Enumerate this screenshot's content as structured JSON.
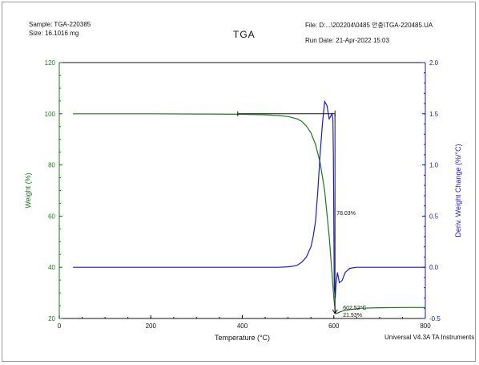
{
  "header": {
    "sample": "Sample: TGA-220385",
    "size": "Size:  16.1016 mg",
    "title": "TGA",
    "file": "File: D:...\\202204\\0485 안충\\TGA-220485.UA",
    "run_date": "Run Date: 21-Apr-2022 15:03",
    "footer": "Universal V4.3A TA Instruments"
  },
  "colors": {
    "weight": "#1a7a1a",
    "deriv": "#1a1acc",
    "annotation": "#111111"
  },
  "chart_data": {
    "type": "line",
    "xlabel": "Temperature (°C)",
    "ylabel": "Weight (%)",
    "y2label": "Deriv. Weight Change (%/°C)",
    "xlim": [
      0,
      800
    ],
    "ylim": [
      20,
      120
    ],
    "y2lim": [
      -0.5,
      2.0
    ],
    "xticks": [
      0,
      200,
      400,
      600,
      800
    ],
    "yticks": [
      20,
      40,
      60,
      80,
      100,
      120
    ],
    "y2ticks": [
      -0.5,
      0.0,
      0.5,
      1.0,
      1.5,
      2.0
    ],
    "grid": false,
    "series": [
      {
        "name": "",
        "axis": "left",
        "x": [
          30,
          100,
          200,
          300,
          400,
          450,
          480,
          500,
          520,
          530,
          540,
          550,
          560,
          570,
          580,
          590,
          595,
          600,
          603,
          606,
          610,
          620,
          640,
          660,
          700,
          750,
          800
        ],
        "y": [
          100,
          100,
          100,
          99.9,
          99.8,
          99.6,
          99.3,
          98.9,
          98.0,
          97.0,
          95.2,
          92.5,
          88.0,
          81.0,
          70.0,
          52.0,
          40.0,
          28.0,
          22.5,
          21.9,
          22.3,
          23.0,
          23.6,
          24.0,
          24.2,
          24.3,
          24.3
        ]
      },
      {
        "name": "",
        "axis": "right",
        "x": [
          30,
          100,
          200,
          300,
          400,
          450,
          480,
          500,
          510,
          520,
          530,
          540,
          550,
          555,
          560,
          565,
          570,
          575,
          580,
          585,
          590,
          596,
          598,
          599,
          600,
          601,
          603,
          605,
          608,
          612,
          618,
          625,
          635,
          650,
          700,
          800
        ],
        "y": [
          0.0,
          0.0,
          0.0,
          0.0,
          0.0,
          0.0,
          0.0,
          0.005,
          0.01,
          0.02,
          0.05,
          0.1,
          0.2,
          0.3,
          0.45,
          0.75,
          1.1,
          1.4,
          1.62,
          1.58,
          1.45,
          1.5,
          1.45,
          1.1,
          0.4,
          -0.2,
          -0.3,
          -0.15,
          -0.05,
          -0.15,
          -0.13,
          -0.05,
          -0.01,
          0.0,
          0.0,
          0.0
        ]
      }
    ],
    "annotations": {
      "step_change": "78.03%",
      "residue_temp": "602.52°C",
      "residue_weight": "21.93%",
      "step_from_x": 390,
      "step_to_x": 602.52,
      "step_top_y": 100,
      "step_bottom_y": 21.93
    }
  }
}
